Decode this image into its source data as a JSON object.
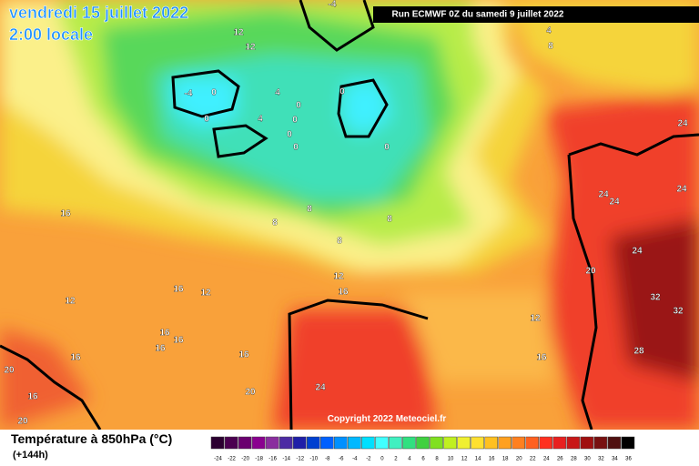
{
  "header": {
    "date": "vendredi 15 juillet 2022",
    "time": "2:00 locale",
    "run": "Run ECMWF 0Z du samedi 9 juillet 2022",
    "copyright": "Copyright 2022 Meteociel.fr"
  },
  "footer": {
    "title": "Température à 850hPa (°C)",
    "lead": "(+144h)"
  },
  "scale": {
    "labels": [
      -24,
      -22,
      -20,
      -18,
      -16,
      -14,
      -12,
      -10,
      -8,
      -6,
      -4,
      -2,
      0,
      2,
      4,
      6,
      8,
      10,
      12,
      14,
      16,
      18,
      20,
      22,
      24,
      26,
      28,
      30,
      32,
      34,
      36
    ],
    "colors": [
      "#2b0030",
      "#4b0050",
      "#6a006f",
      "#8a008f",
      "#8a2e9e",
      "#4d2ba3",
      "#1f1fa8",
      "#0040d0",
      "#0060ff",
      "#0090ff",
      "#00b8ff",
      "#00e0ff",
      "#40ffff",
      "#40f0c0",
      "#30e080",
      "#40d040",
      "#80e020",
      "#c0f020",
      "#f0f030",
      "#ffe030",
      "#ffc020",
      "#ffa020",
      "#ff8020",
      "#ff6020",
      "#ff3020",
      "#e82020",
      "#c81818",
      "#a01010",
      "#781010",
      "#501010",
      "#000000"
    ]
  },
  "map": {
    "labels": [
      -4,
      12,
      12,
      4,
      8,
      -4,
      0,
      4,
      0,
      0,
      0,
      4,
      0,
      0,
      0,
      0,
      24,
      16,
      8,
      8,
      8,
      24,
      24,
      24,
      8,
      24,
      12,
      16,
      20,
      16,
      12,
      12,
      32,
      32,
      12,
      16,
      16,
      16,
      28,
      16,
      16,
      16,
      20,
      24,
      20,
      16,
      20
    ]
  }
}
